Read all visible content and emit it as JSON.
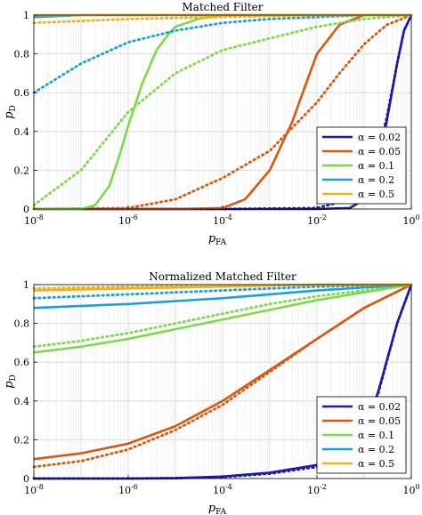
{
  "chart_data": [
    {
      "type": "line",
      "title": "Matched Filter",
      "xlabel": "p",
      "xlabel_sub": "FA",
      "ylabel": "p",
      "ylabel_sub": "D",
      "xscale": "log",
      "xlim": [
        1e-08,
        1
      ],
      "ylim": [
        0,
        1
      ],
      "xticks": [
        {
          "base": "10",
          "exp": "-8"
        },
        {
          "base": "10",
          "exp": "-6"
        },
        {
          "base": "10",
          "exp": "-4"
        },
        {
          "base": "10",
          "exp": "-2"
        },
        {
          "base": "10",
          "exp": "0"
        }
      ],
      "yticks": [
        "0",
        "0.2",
        "0.4",
        "0.6",
        "0.8",
        "1"
      ],
      "grid": true,
      "legend_position": "bottom-right",
      "line_styles": [
        "solid",
        "dotted"
      ],
      "series": [
        {
          "name": "α = 0.02",
          "color": "#1a1aa8",
          "solid": {
            "x": [
              1e-08,
              0.0001,
              0.01,
              0.05,
              0.1,
              0.2,
              0.3,
              0.5,
              0.7,
              1
            ],
            "y": [
              0,
              0,
              0,
              0.005,
              0.05,
              0.25,
              0.45,
              0.75,
              0.92,
              1
            ]
          },
          "dotted": {
            "x": [
              1e-08,
              0.0001,
              0.01,
              0.05,
              0.1,
              0.2,
              0.3,
              0.5,
              0.7,
              1
            ],
            "y": [
              0,
              0,
              0.005,
              0.05,
              0.12,
              0.3,
              0.47,
              0.75,
              0.92,
              1
            ]
          }
        },
        {
          "name": "α = 0.05",
          "color": "#d9570f",
          "solid": {
            "x": [
              1e-08,
              1e-05,
              0.0001,
              0.0003,
              0.001,
              0.003,
              0.005,
              0.01,
              0.03,
              0.1,
              0.3,
              1
            ],
            "y": [
              0,
              0,
              0.005,
              0.05,
              0.2,
              0.45,
              0.6,
              0.8,
              0.95,
              1,
              1,
              1
            ]
          },
          "dotted": {
            "x": [
              1e-08,
              1e-06,
              1e-05,
              0.0001,
              0.001,
              0.01,
              0.03,
              0.1,
              0.3,
              1
            ],
            "y": [
              0,
              0.005,
              0.05,
              0.16,
              0.3,
              0.55,
              0.7,
              0.85,
              0.95,
              1
            ]
          }
        },
        {
          "name": "α = 0.1",
          "color": "#7ed84e",
          "solid": {
            "x": [
              1e-08,
              1e-07,
              2e-07,
              4e-07,
              7e-07,
              1e-06,
              2e-06,
              4e-06,
              7e-06,
              1e-05,
              3e-05,
              0.0001,
              1
            ],
            "y": [
              0,
              0,
              0.02,
              0.12,
              0.3,
              0.43,
              0.65,
              0.82,
              0.9,
              0.94,
              0.98,
              1,
              1
            ]
          },
          "dotted": {
            "x": [
              1e-08,
              1e-07,
              1e-06,
              1e-05,
              0.0001,
              0.001,
              0.01,
              0.1,
              1
            ],
            "y": [
              0.02,
              0.2,
              0.5,
              0.7,
              0.82,
              0.88,
              0.94,
              0.98,
              1
            ]
          }
        },
        {
          "name": "α = 0.2",
          "color": "#1c9fd9",
          "solid": {
            "x": [
              1e-08,
              1e-07,
              1e-06,
              0.0001,
              1
            ],
            "y": [
              0.99,
              1,
              1,
              1,
              1
            ]
          },
          "dotted": {
            "x": [
              1e-08,
              1e-07,
              1e-06,
              1e-05,
              0.0001,
              0.001,
              0.01,
              0.1,
              1
            ],
            "y": [
              0.6,
              0.75,
              0.86,
              0.92,
              0.96,
              0.98,
              0.99,
              1,
              1
            ]
          }
        },
        {
          "name": "α = 0.5",
          "color": "#e9b320",
          "solid": {
            "x": [
              1e-08,
              0.0001,
              1
            ],
            "y": [
              1,
              1,
              1
            ]
          },
          "dotted": {
            "x": [
              1e-08,
              1e-06,
              0.0001,
              0.01,
              1
            ],
            "y": [
              0.96,
              0.98,
              0.99,
              1,
              1
            ]
          }
        }
      ]
    },
    {
      "type": "line",
      "title": "Normalized Matched Filter",
      "xlabel": "p",
      "xlabel_sub": "FA",
      "ylabel": "p",
      "ylabel_sub": "D",
      "xscale": "log",
      "xlim": [
        1e-08,
        1
      ],
      "ylim": [
        0,
        1
      ],
      "xticks": [
        {
          "base": "10",
          "exp": "-8"
        },
        {
          "base": "10",
          "exp": "-6"
        },
        {
          "base": "10",
          "exp": "-4"
        },
        {
          "base": "10",
          "exp": "-2"
        },
        {
          "base": "10",
          "exp": "0"
        }
      ],
      "yticks": [
        "0",
        "0.2",
        "0.4",
        "0.6",
        "0.8",
        "1"
      ],
      "grid": true,
      "legend_position": "bottom-right",
      "line_styles": [
        "solid",
        "dotted"
      ],
      "series": [
        {
          "name": "α = 0.02",
          "color": "#1a1aa8",
          "solid": {
            "x": [
              1e-08,
              1e-06,
              1e-05,
              0.0001,
              0.001,
              0.01,
              0.05,
              0.1,
              0.2,
              0.5,
              1
            ],
            "y": [
              0,
              0,
              0.002,
              0.01,
              0.03,
              0.07,
              0.15,
              0.25,
              0.45,
              0.8,
              1
            ]
          },
          "dotted": {
            "x": [
              1e-08,
              1e-06,
              1e-05,
              0.0001,
              0.001,
              0.01,
              0.05,
              0.1,
              0.2,
              0.5,
              1
            ],
            "y": [
              0,
              0,
              0.002,
              0.008,
              0.025,
              0.06,
              0.13,
              0.23,
              0.44,
              0.8,
              1
            ]
          }
        },
        {
          "name": "α = 0.05",
          "color": "#d9570f",
          "solid": {
            "x": [
              1e-08,
              1e-07,
              1e-06,
              1e-05,
              0.0001,
              0.001,
              0.01,
              0.1,
              1
            ],
            "y": [
              0.1,
              0.13,
              0.18,
              0.27,
              0.4,
              0.56,
              0.72,
              0.88,
              1
            ]
          },
          "dotted": {
            "x": [
              1e-08,
              1e-07,
              1e-06,
              1e-05,
              0.0001,
              0.001,
              0.01,
              0.1,
              1
            ],
            "y": [
              0.06,
              0.09,
              0.15,
              0.25,
              0.38,
              0.55,
              0.72,
              0.88,
              1
            ]
          }
        },
        {
          "name": "α = 0.1",
          "color": "#7ed84e",
          "solid": {
            "x": [
              1e-08,
              1e-07,
              1e-06,
              1e-05,
              0.0001,
              0.001,
              0.01,
              0.1,
              1
            ],
            "y": [
              0.65,
              0.68,
              0.72,
              0.77,
              0.82,
              0.87,
              0.92,
              0.96,
              1
            ]
          },
          "dotted": {
            "x": [
              1e-08,
              1e-07,
              1e-06,
              1e-05,
              0.0001,
              0.001,
              0.01,
              0.1,
              1
            ],
            "y": [
              0.68,
              0.71,
              0.75,
              0.8,
              0.85,
              0.9,
              0.94,
              0.97,
              1
            ]
          }
        },
        {
          "name": "α = 0.2",
          "color": "#1c9fd9",
          "solid": {
            "x": [
              1e-08,
              1e-06,
              0.0001,
              0.01,
              1
            ],
            "y": [
              0.88,
              0.9,
              0.93,
              0.97,
              1
            ]
          },
          "dotted": {
            "x": [
              1e-08,
              1e-06,
              0.0001,
              0.01,
              1
            ],
            "y": [
              0.93,
              0.95,
              0.97,
              0.99,
              1
            ]
          }
        },
        {
          "name": "α = 0.5",
          "color": "#e9b320",
          "solid": {
            "x": [
              1e-08,
              1e-06,
              0.0001,
              0.01,
              1
            ],
            "y": [
              0.97,
              0.98,
              0.99,
              1,
              1
            ]
          },
          "dotted": {
            "x": [
              1e-08,
              1e-06,
              0.0001,
              0.01,
              1
            ],
            "y": [
              0.98,
              0.99,
              0.995,
              1,
              1
            ]
          }
        }
      ]
    }
  ]
}
